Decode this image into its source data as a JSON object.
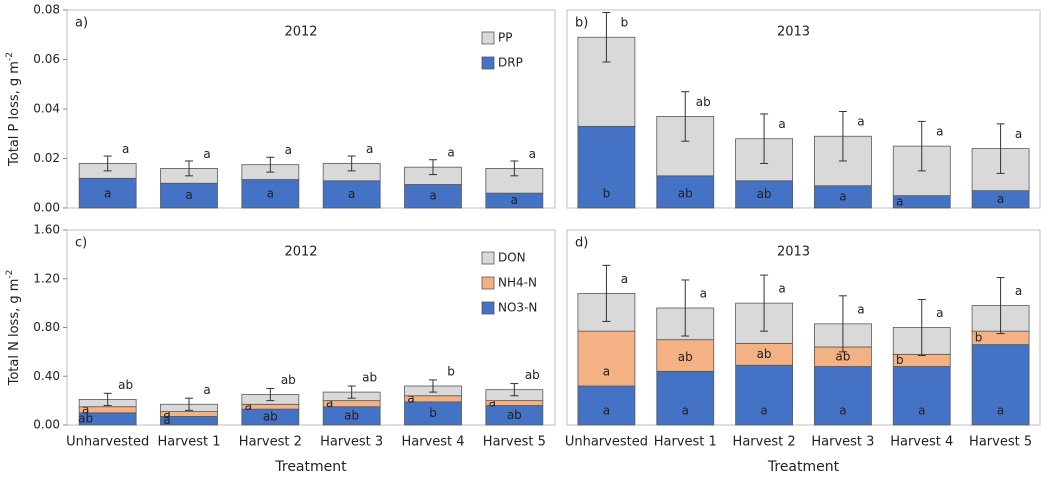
{
  "chart_data": [
    {
      "type": "stacked-bar",
      "panel_label": "a)",
      "title": "2012",
      "y_label": "Total P loss, g m",
      "y_label_sup": "-2",
      "ylim": [
        0,
        0.08
      ],
      "yticks": [
        {
          "value": 0,
          "label": "0.00"
        },
        0.02,
        0.04,
        0.06,
        0.08
      ],
      "legend": "upper right",
      "series": [
        {
          "name": "DRP",
          "color": "#4472c4",
          "values": [
            0.012,
            0.01,
            0.0115,
            0.011,
            0.0095,
            0.006
          ],
          "letters": [
            "a",
            "a",
            "a",
            "a",
            "a",
            "a"
          ]
        },
        {
          "name": "PP",
          "color": "#d9d9d9",
          "values": [
            0.006,
            0.006,
            0.006,
            0.007,
            0.007,
            0.01
          ]
        }
      ],
      "errors": [
        0.003,
        0.003,
        0.003,
        0.003,
        0.003,
        0.003
      ],
      "total_letters": [
        "a",
        "a",
        "a",
        "a",
        "a",
        "a"
      ]
    },
    {
      "type": "stacked-bar",
      "panel_label": "b)",
      "title": "2013",
      "ylim": [
        0,
        0.08
      ],
      "series": [
        {
          "color": "#4472c4",
          "values": [
            0.033,
            0.013,
            0.011,
            0.009,
            0.005,
            0.007
          ],
          "letters": [
            "b",
            "ab",
            "ab",
            "a",
            "a",
            "a"
          ]
        },
        {
          "color": "#d9d9d9",
          "values": [
            0.036,
            0.024,
            0.017,
            0.02,
            0.02,
            0.017
          ]
        }
      ],
      "errors": [
        0.01,
        0.01,
        0.01,
        0.01,
        0.01,
        0.01
      ],
      "total_letters": [
        "b",
        "ab",
        "a",
        "a",
        "a",
        "a"
      ]
    },
    {
      "type": "stacked-bar",
      "panel_label": "c)",
      "title": "2012",
      "y_label": "Total N loss, g m",
      "y_label_sup": "-2",
      "ylim": [
        0,
        1.6
      ],
      "yticks": [
        {
          "value": 0,
          "label": "0.00"
        },
        {
          "value": 0.4,
          "label": "0.40"
        },
        {
          "value": 0.8,
          "label": "0.80"
        },
        {
          "value": 1.2,
          "label": "1.20"
        },
        {
          "value": 1.6,
          "label": "1.60"
        }
      ],
      "legend": "upper right",
      "categories": [
        "Unharvested",
        "Harvest 1",
        "Harvest 2",
        "Harvest 3",
        "Harvest 4",
        "Harvest 5"
      ],
      "x_label": "Treatment",
      "series": [
        {
          "name": "NO3-N",
          "color": "#4472c4",
          "values": [
            0.1,
            0.07,
            0.13,
            0.15,
            0.19,
            0.16
          ],
          "letters": [
            "ab",
            "a",
            "ab",
            "ab",
            "b",
            "ab"
          ]
        },
        {
          "name": "NH4-N",
          "color": "#f4b183",
          "values": [
            0.05,
            0.04,
            0.04,
            0.05,
            0.05,
            0.04
          ],
          "letters": [
            "a",
            "a",
            "a",
            "a",
            "a",
            "a"
          ]
        },
        {
          "name": "DON",
          "color": "#d9d9d9",
          "values": [
            0.06,
            0.06,
            0.08,
            0.07,
            0.08,
            0.09
          ]
        }
      ],
      "errors": [
        0.05,
        0.05,
        0.05,
        0.05,
        0.05,
        0.05
      ],
      "total_letters": [
        "ab",
        "a",
        "ab",
        "ab",
        "b",
        "ab"
      ]
    },
    {
      "type": "stacked-bar",
      "panel_label": "d)",
      "title": "2013",
      "ylim": [
        0,
        1.6
      ],
      "categories": [
        "Unharvested",
        "Harvest 1",
        "Harvest 2",
        "Harvest 3",
        "Harvest 4",
        "Harvest 5"
      ],
      "x_label": "Treatment",
      "series": [
        {
          "color": "#4472c4",
          "values": [
            0.32,
            0.44,
            0.49,
            0.48,
            0.48,
            0.66
          ],
          "letters": [
            "a",
            "a",
            "a",
            "a",
            "a",
            "a"
          ]
        },
        {
          "color": "#f4b183",
          "values": [
            0.45,
            0.26,
            0.18,
            0.16,
            0.1,
            0.11
          ],
          "letters": [
            "a",
            "ab",
            "ab",
            "ab",
            "b",
            "b"
          ]
        },
        {
          "color": "#d9d9d9",
          "values": [
            0.31,
            0.26,
            0.33,
            0.19,
            0.22,
            0.21
          ]
        }
      ],
      "errors": [
        0.23,
        0.23,
        0.23,
        0.23,
        0.23,
        0.23
      ],
      "total_letters": [
        "a",
        "a",
        "a",
        "a",
        "a",
        "a"
      ]
    }
  ]
}
